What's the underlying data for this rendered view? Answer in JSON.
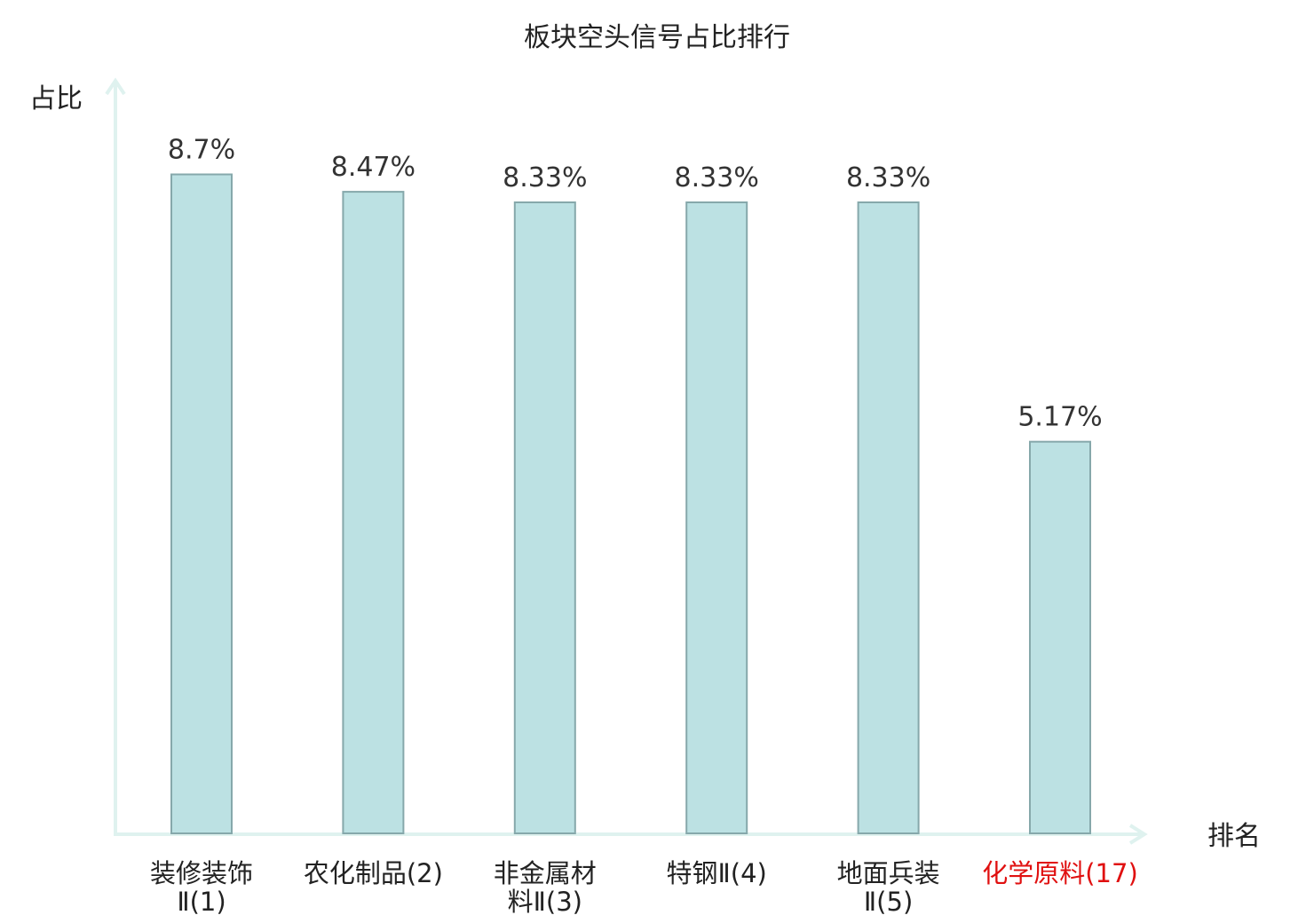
{
  "chart_data": {
    "type": "bar",
    "title": "板块空头信号占比排行",
    "xlabel": "排名",
    "ylabel": "占比",
    "ylim": [
      0,
      10
    ],
    "grid": false,
    "categories": [
      {
        "lines": [
          "装修装饰",
          "Ⅱ(1)"
        ],
        "highlight": false
      },
      {
        "lines": [
          "农化制品(2)"
        ],
        "highlight": false
      },
      {
        "lines": [
          "非金属材",
          "料Ⅱ(3)"
        ],
        "highlight": false
      },
      {
        "lines": [
          "特钢Ⅱ(4)"
        ],
        "highlight": false
      },
      {
        "lines": [
          "地面兵装",
          "Ⅱ(5)"
        ],
        "highlight": false
      },
      {
        "lines": [
          "化学原料(17)"
        ],
        "highlight": true
      }
    ],
    "values": [
      8.7,
      8.47,
      8.33,
      8.33,
      8.33,
      5.17
    ],
    "value_labels": [
      "8.7%",
      "8.47%",
      "8.33%",
      "8.33%",
      "8.33%",
      "5.17%"
    ],
    "colors": {
      "bar_fill": "#bce1e3",
      "bar_stroke": "#86a8ab",
      "axis": "#dff2ef",
      "highlight_label": "#e01010",
      "text": "#222222"
    }
  }
}
